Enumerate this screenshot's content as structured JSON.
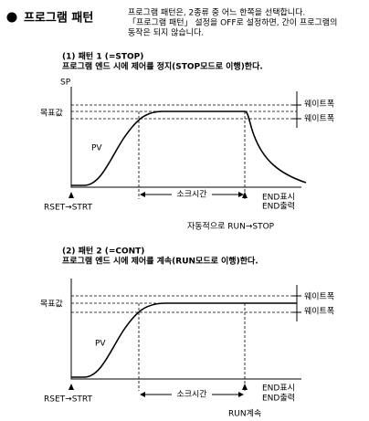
{
  "header": {
    "title": "프로그램 패턴",
    "description": [
      "프로그램 패턴은, 2종류 중 어느 한쪽을 선택합니다.",
      "「프로그램 패턴」 설정을 OFF로 설정하면, 간이 프로그램의",
      "동작은 되지 않습니다."
    ]
  },
  "patterns": [
    {
      "title": "(1) 패턴 1 (=STOP)",
      "subtitle": "프로그램 엔드 시에 제어를 정지(STOP모드로 이행)한다.",
      "axis_label": "SP",
      "target": "목표값",
      "pv": "PV",
      "wait_upper": "웨이트폭",
      "wait_lower": "웨이트폭",
      "start": "RSET→STRT",
      "soak": "소크시간",
      "end_display": "END표시",
      "end_output": "END출력",
      "note": "자동적으로 RUN→STOP"
    },
    {
      "title": "(2) 패턴 2 (=CONT)",
      "subtitle": "프로그램 엔드 시에 제어를 계속(RUN모드로 이행)한다.",
      "target": "목표값",
      "pv": "PV",
      "wait_upper": "웨이트폭",
      "wait_lower": "웨이트폭",
      "start": "RSET→STRT",
      "soak": "소크시간",
      "end_display": "END표시",
      "end_output": "END출력",
      "note": "RUN계속"
    }
  ]
}
